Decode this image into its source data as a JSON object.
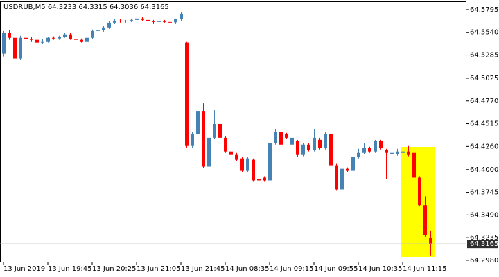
{
  "chart_data": {
    "type": "candlestick",
    "title": "USDRUB,M5  64.3233 64.3315 64.3036 64.3165",
    "up_color": "#4682b4",
    "down_color": "#ff0000",
    "price_line_color": "#c0c0c0",
    "categories": [
      "13 Jun 2019",
      null,
      null,
      null,
      null,
      null,
      null,
      null,
      "13 Jun 19:45",
      null,
      null,
      null,
      null,
      null,
      null,
      null,
      "13 Jun 20:25",
      null,
      null,
      null,
      null,
      null,
      null,
      null,
      "13 Jun 21:05",
      null,
      null,
      null,
      null,
      null,
      null,
      null,
      "13 Jun 21:45",
      null,
      null,
      null,
      null,
      null,
      null,
      null,
      "14 Jun 08:35",
      null,
      null,
      null,
      null,
      null,
      null,
      null,
      "14 Jun 09:15",
      null,
      null,
      null,
      null,
      null,
      null,
      null,
      "14 Jun 09:55",
      null,
      null,
      null,
      null,
      null,
      null,
      null,
      "14 Jun 10:35",
      null,
      null,
      null,
      null,
      null,
      null,
      null,
      "14 Jun 11:15",
      null,
      null,
      null,
      null,
      null
    ],
    "open": [
      64.53,
      64.5532,
      64.5478,
      64.5246,
      64.5478,
      64.5463,
      64.5455,
      64.5424,
      64.5439,
      64.5478,
      64.547,
      64.5486,
      64.5517,
      64.5463,
      64.5455,
      64.5439,
      64.5478,
      64.5555,
      64.5563,
      64.5594,
      64.5648,
      64.5671,
      64.5664,
      64.5671,
      64.5679,
      64.5695,
      64.5679,
      64.5664,
      64.5656,
      64.5664,
      64.5656,
      64.5652,
      64.5687,
      64.5424,
      64.4265,
      64.4396,
      64.4651,
      64.4033,
      64.4357,
      64.4512,
      64.4357,
      64.4203,
      64.4164,
      64.4125,
      64.3986,
      64.411,
      64.3893,
      64.3909,
      64.3878,
      64.4295,
      64.4419,
      64.4396,
      64.428,
      64.4319,
      64.4164,
      64.428,
      64.4218,
      64.4334,
      64.4241,
      64.4396,
      64.4048,
      64.3777,
      64.4009,
      64.3986,
      64.4141,
      64.4187,
      64.4241,
      64.4203,
      64.4319,
      64.4218,
      64.4172,
      64.4172,
      64.4187,
      64.4203,
      64.4187,
      64.3909,
      64.36,
      64.3233
    ],
    "high": [
      64.5555,
      64.5563,
      64.5501,
      64.5501,
      64.5517,
      64.5486,
      64.547,
      64.5463,
      64.5486,
      64.5494,
      64.5501,
      64.5532,
      64.5532,
      64.5478,
      64.547,
      64.5494,
      64.5571,
      64.5586,
      64.561,
      64.5664,
      64.5687,
      64.5687,
      64.5679,
      64.5695,
      64.571,
      64.571,
      64.5695,
      64.5679,
      64.5671,
      64.5679,
      64.5664,
      64.5695,
      64.5764,
      64.5439,
      64.4419,
      64.4759,
      64.4744,
      64.4372,
      64.4666,
      64.4535,
      64.4372,
      64.4218,
      64.4187,
      64.4141,
      64.4141,
      64.4125,
      64.3909,
      64.3924,
      64.4311,
      64.445,
      64.4435,
      64.4412,
      64.4372,
      64.4334,
      64.4295,
      64.4296,
      64.445,
      64.4357,
      64.4419,
      64.4412,
      64.4064,
      64.4025,
      64.4025,
      64.4156,
      64.4234,
      64.4296,
      64.4257,
      64.4334,
      64.4334,
      64.4234,
      64.4203,
      64.4234,
      64.4234,
      64.4265,
      64.4265,
      64.3925,
      64.37,
      64.3315
    ],
    "low": [
      64.5269,
      64.5455,
      64.523,
      64.523,
      64.5439,
      64.5439,
      64.5408,
      64.5408,
      64.5424,
      64.5455,
      64.5455,
      64.5478,
      64.5455,
      64.5439,
      64.5424,
      64.5424,
      64.5463,
      64.5539,
      64.5547,
      64.5578,
      64.5633,
      64.5648,
      64.5648,
      64.5656,
      64.5664,
      64.5664,
      64.5648,
      64.564,
      64.564,
      64.5648,
      64.564,
      64.564,
      64.5664,
      64.4241,
      64.4241,
      64.438,
      64.4017,
      64.4017,
      64.4341,
      64.4341,
      64.4187,
      64.4141,
      64.4094,
      64.397,
      64.397,
      64.3862,
      64.3862,
      64.3862,
      64.3862,
      64.428,
      64.4265,
      64.4341,
      64.4265,
      64.4141,
      64.4149,
      64.4203,
      64.4203,
      64.4226,
      64.4226,
      64.4033,
      64.3762,
      64.37,
      64.397,
      64.397,
      64.4125,
      64.4172,
      64.4187,
      64.4187,
      64.4226,
      64.3893,
      64.4156,
      64.4156,
      64.4172,
      64.4149,
      64.3893,
      64.3585,
      64.3244,
      64.3036
    ],
    "close": [
      64.5532,
      64.5478,
      64.5246,
      64.5478,
      64.5463,
      64.5455,
      64.5424,
      64.5439,
      64.5478,
      64.547,
      64.5486,
      64.5517,
      64.5463,
      64.5455,
      64.5439,
      64.5478,
      64.5555,
      64.5563,
      64.5594,
      64.5648,
      64.5671,
      64.5664,
      64.5671,
      64.5679,
      64.5695,
      64.5679,
      64.5664,
      64.5656,
      64.5664,
      64.5656,
      64.5652,
      64.5687,
      64.5749,
      64.4265,
      64.4396,
      64.4651,
      64.4033,
      64.4357,
      64.4512,
      64.4357,
      64.4203,
      64.4164,
      64.411,
      64.3986,
      64.4125,
      64.3878,
      64.3878,
      64.3878,
      64.4295,
      64.4419,
      64.428,
      64.4357,
      64.4357,
      64.4164,
      64.428,
      64.4218,
      64.4357,
      64.4241,
      64.4396,
      64.4048,
      64.3777,
      64.4009,
      64.3986,
      64.4141,
      64.4187,
      64.4241,
      64.4203,
      64.4319,
      64.4241,
      64.4187,
      64.4187,
      64.4203,
      64.4203,
      64.4164,
      64.3909,
      64.36,
      64.326,
      64.3165
    ],
    "ylim": [
      64.2964,
      64.5888
    ],
    "yticks": [
      64.5795,
      {
        "value": 64.554,
        "label": "64.5540"
      },
      64.5285,
      64.5025,
      {
        "value": 64.477,
        "label": "64.4770"
      },
      64.4515,
      {
        "value": 64.426,
        "label": "64.4260"
      },
      {
        "value": 64.4,
        "label": "64.4000"
      },
      64.3745,
      {
        "value": 64.349,
        "label": "64.3490"
      },
      64.3235,
      {
        "value": 64.298,
        "label": "64.2980"
      }
    ]
  }
}
